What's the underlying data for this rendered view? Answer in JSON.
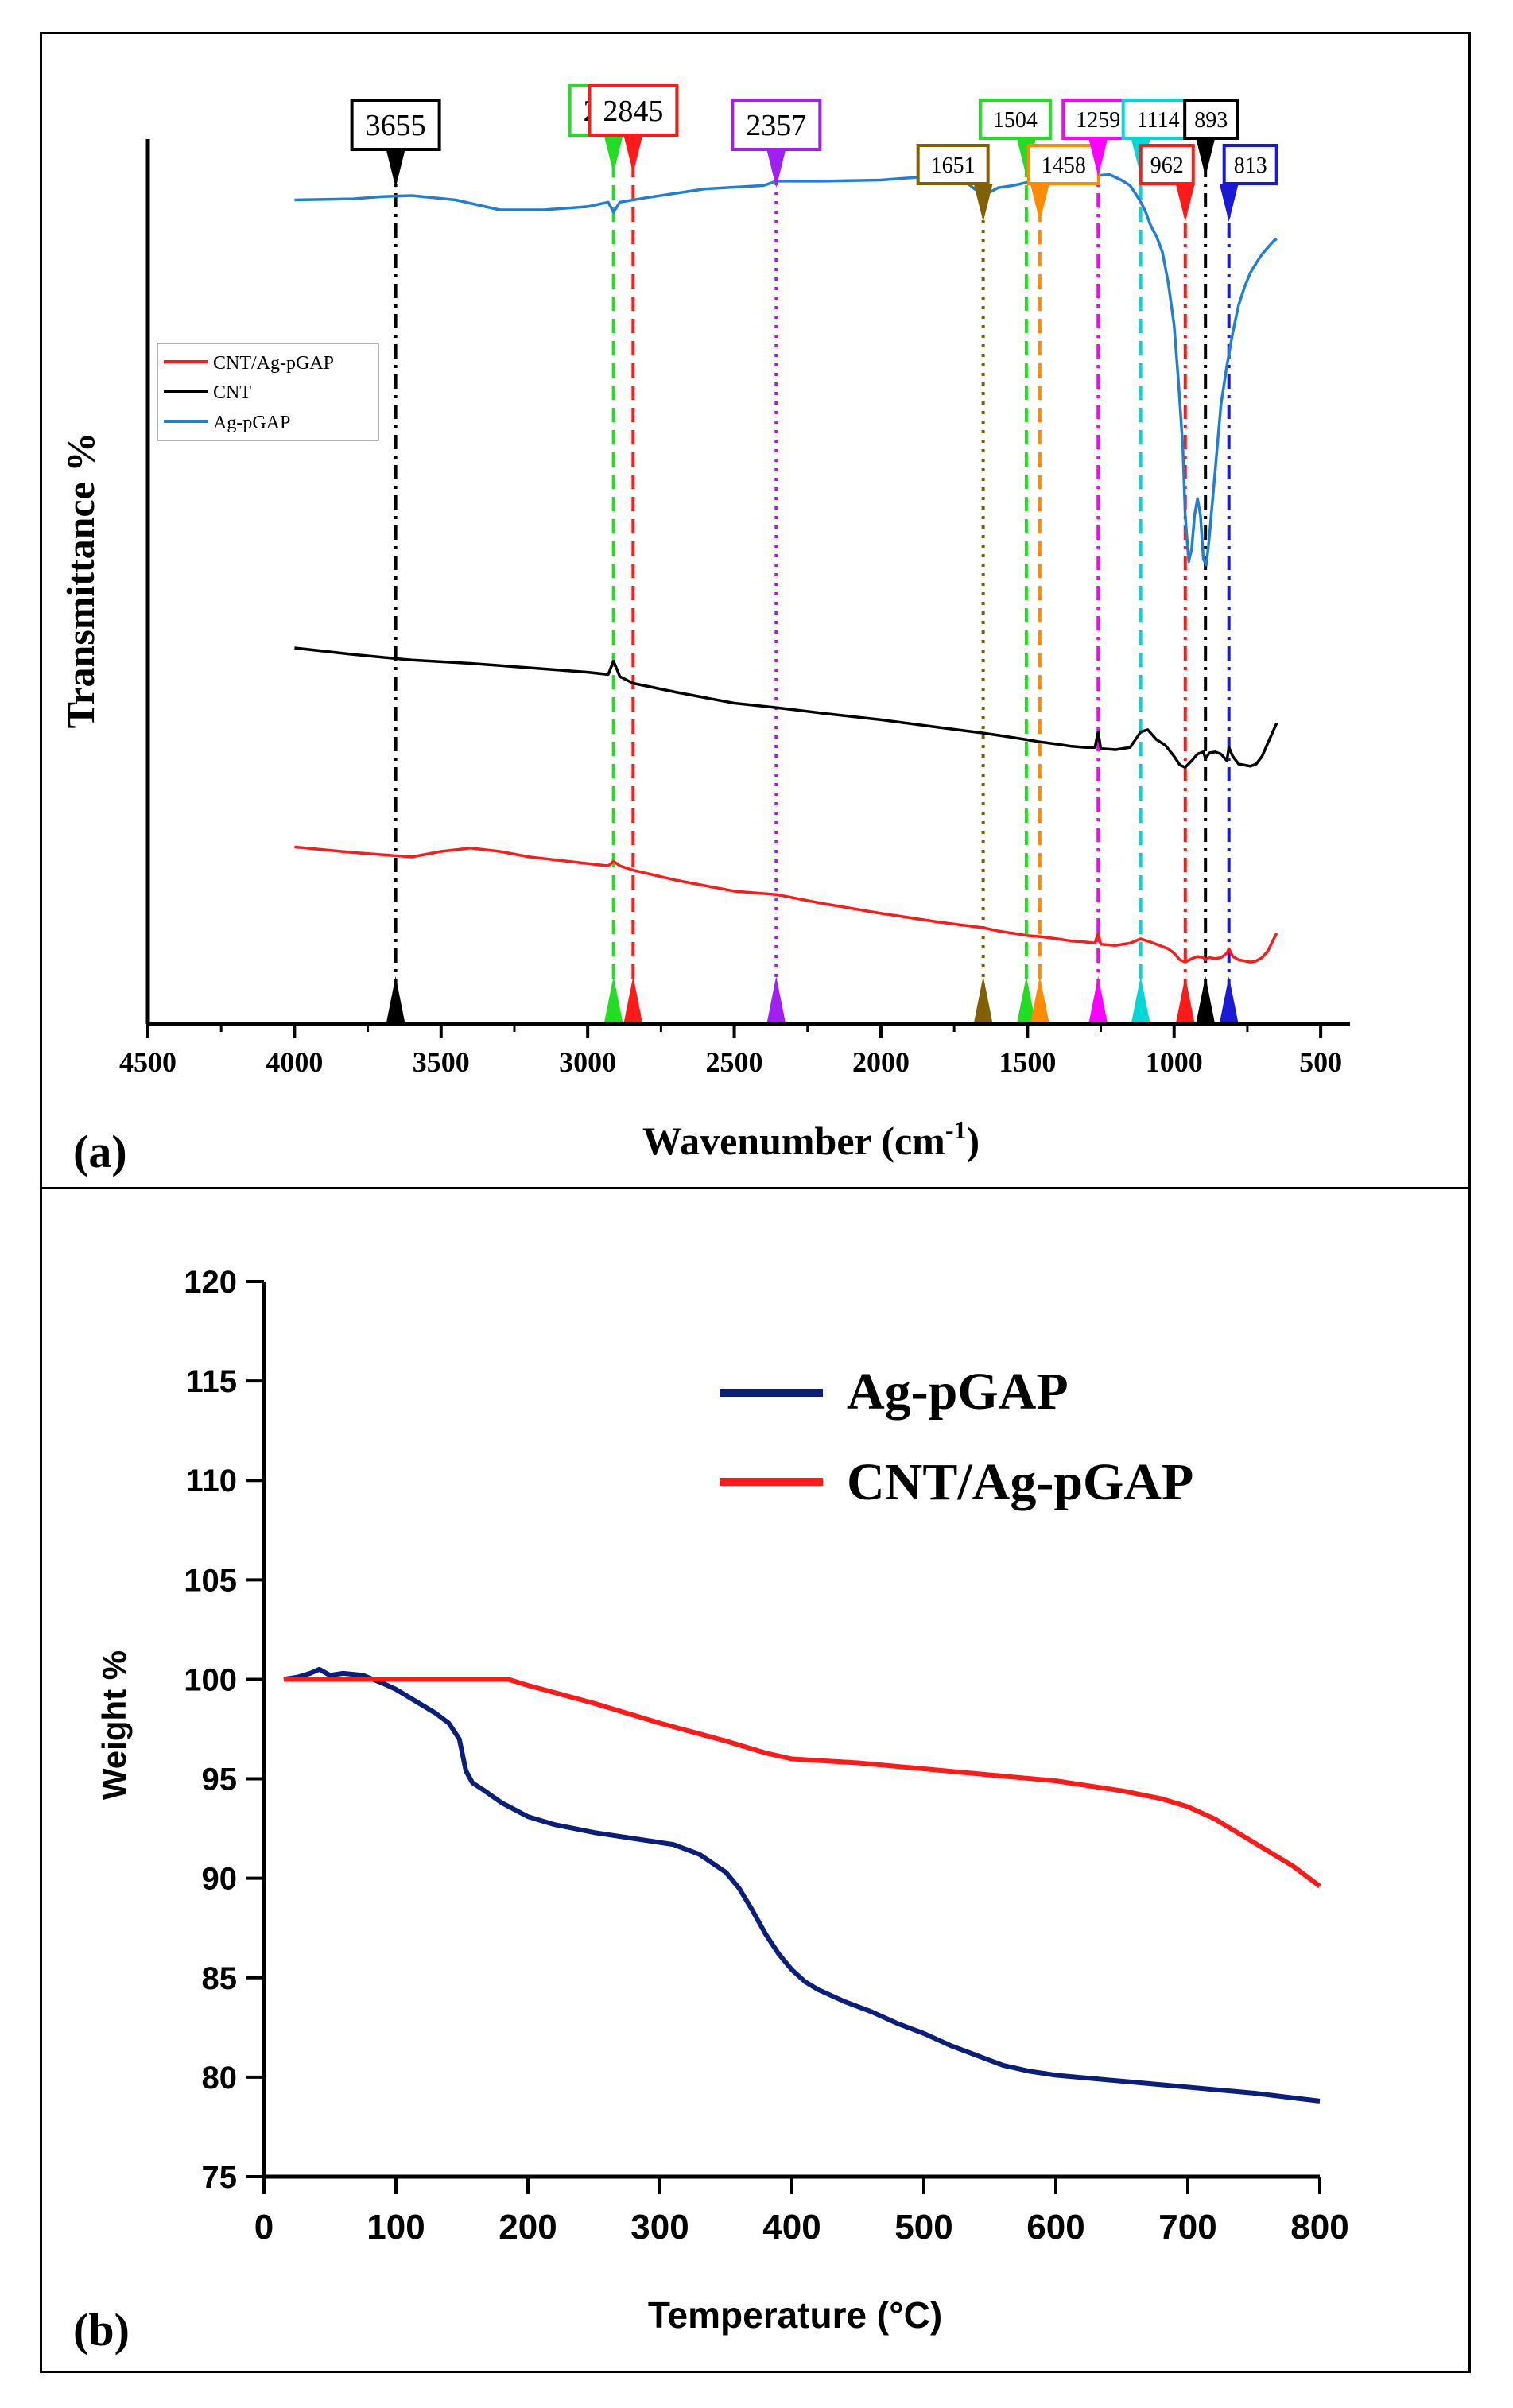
{
  "chart_data": [
    {
      "panel_label": "(a)",
      "type": "line",
      "xlabel": "Wavenumber (cm",
      "xlabel_sup": "-1",
      "xlabel_end": ")",
      "ylabel": "Transmittance %",
      "xlim": [
        4500,
        400
      ],
      "x_reversed": true,
      "xticks": [
        4500,
        4000,
        3500,
        3000,
        2500,
        2000,
        1500,
        1000,
        500
      ],
      "y_ticks_shown": false,
      "legend_position": "left-upper",
      "legend": [
        {
          "name": "CNT/Ag-pGAP",
          "color": "#ff1a1a"
        },
        {
          "name": "CNT",
          "color": "#000000"
        },
        {
          "name": "Ag-pGAP",
          "color": "#1f7fd6"
        }
      ],
      "series": [
        {
          "name": "Ag-pGAP",
          "color": "#1f7fd6",
          "x": [
            4000,
            3800,
            3700,
            3600,
            3450,
            3300,
            3150,
            3000,
            2930,
            2912,
            2890,
            2800,
            2600,
            2400,
            2357,
            2200,
            2000,
            1850,
            1780,
            1700,
            1651,
            1600,
            1550,
            1500,
            1460,
            1420,
            1380,
            1330,
            1300,
            1260,
            1220,
            1180,
            1150,
            1120,
            1100,
            1080,
            1060,
            1040,
            1020,
            1000,
            985,
            970,
            962,
            950,
            940,
            930,
            920,
            910,
            900,
            890,
            880,
            870,
            860,
            850,
            840,
            820,
            800,
            780,
            760,
            740,
            720,
            700,
            680,
            660,
            650
          ],
          "y": [
            8.5,
            8.6,
            8.8,
            8.9,
            8.5,
            7.6,
            7.6,
            7.9,
            8.3,
            7.4,
            8.3,
            8.7,
            9.5,
            9.8,
            10.2,
            10.2,
            10.3,
            10.6,
            10.8,
            9.9,
            8.9,
            9.6,
            9.8,
            10.1,
            10.3,
            10.2,
            10.0,
            10.2,
            10.6,
            10.7,
            10.8,
            10.3,
            9.8,
            8.6,
            7.6,
            6.2,
            5.2,
            3.8,
            1.0,
            -2.8,
            -8.0,
            -14.0,
            -20.0,
            -24.2,
            -23.0,
            -20.0,
            -18.5,
            -20.0,
            -24.0,
            -24.5,
            -22.0,
            -19.0,
            -16.0,
            -13.0,
            -10.0,
            -6.5,
            -3.5,
            -1.0,
            0.6,
            1.9,
            2.8,
            3.6,
            4.2,
            4.8,
            5.0
          ]
        },
        {
          "name": "CNT",
          "color": "#000000",
          "x": [
            4000,
            3800,
            3600,
            3400,
            3200,
            3000,
            2930,
            2912,
            2890,
            2845,
            2700,
            2500,
            2357,
            2200,
            2000,
            1800,
            1651,
            1600,
            1550,
            1504,
            1458,
            1400,
            1350,
            1300,
            1270,
            1259,
            1250,
            1200,
            1150,
            1114,
            1090,
            1060,
            1030,
            1000,
            980,
            962,
            940,
            920,
            900,
            893,
            880,
            860,
            840,
            820,
            813,
            800,
            780,
            760,
            740,
            720,
            700,
            680,
            660,
            650
          ],
          "y": [
            -32.0,
            -32.6,
            -33.1,
            -33.4,
            -33.8,
            -34.2,
            -34.4,
            -33.2,
            -34.6,
            -35.2,
            -36.0,
            -37.0,
            -37.4,
            -37.9,
            -38.5,
            -39.2,
            -39.7,
            -39.9,
            -40.1,
            -40.3,
            -40.5,
            -40.7,
            -40.9,
            -41.0,
            -41.0,
            -39.6,
            -41.1,
            -41.2,
            -41.0,
            -39.6,
            -39.4,
            -40.3,
            -40.8,
            -41.8,
            -42.6,
            -42.8,
            -42.2,
            -41.6,
            -41.4,
            -42.0,
            -41.5,
            -41.4,
            -41.6,
            -42.2,
            -41.0,
            -41.8,
            -42.5,
            -42.6,
            -42.7,
            -42.5,
            -41.8,
            -40.6,
            -39.4,
            -38.8
          ]
        },
        {
          "name": "CNT/Ag-pGAP",
          "color": "#ff1a1a",
          "x": [
            4000,
            3800,
            3600,
            3500,
            3400,
            3300,
            3200,
            3000,
            2930,
            2912,
            2890,
            2845,
            2700,
            2500,
            2357,
            2200,
            2000,
            1800,
            1651,
            1600,
            1550,
            1504,
            1458,
            1400,
            1350,
            1300,
            1270,
            1259,
            1250,
            1200,
            1150,
            1114,
            1080,
            1050,
            1020,
            1000,
            980,
            962,
            940,
            920,
            900,
            893,
            880,
            860,
            840,
            820,
            813,
            800,
            780,
            760,
            740,
            720,
            700,
            680,
            660,
            650
          ],
          "y": [
            -50.0,
            -50.5,
            -50.9,
            -50.4,
            -50.1,
            -50.4,
            -50.9,
            -51.5,
            -51.7,
            -51.3,
            -51.7,
            -52.1,
            -53.0,
            -54.0,
            -54.3,
            -55.1,
            -56.0,
            -56.8,
            -57.3,
            -57.6,
            -57.8,
            -58.0,
            -58.1,
            -58.3,
            -58.5,
            -58.6,
            -58.7,
            -57.8,
            -58.8,
            -58.9,
            -58.7,
            -58.3,
            -58.6,
            -58.9,
            -59.2,
            -59.6,
            -60.2,
            -60.4,
            -60.1,
            -59.9,
            -60.0,
            -60.2,
            -60.0,
            -60.1,
            -60.0,
            -59.6,
            -59.2,
            -59.9,
            -60.2,
            -60.3,
            -60.4,
            -60.3,
            -60.0,
            -59.4,
            -58.3,
            -57.8
          ]
        }
      ],
      "peak_markers": [
        {
          "label": "3655",
          "x": 3655,
          "color": "#000000",
          "line_style": "dashdot"
        },
        {
          "label": "2912",
          "x": 2912,
          "color": "#22dd22",
          "line_style": "dashed"
        },
        {
          "label": "2845",
          "x": 2845,
          "color": "#ff1a1a",
          "line_style": "dashed"
        },
        {
          "label": "2357",
          "x": 2357,
          "color": "#a020f0",
          "line_style": "dotted"
        },
        {
          "label": "1651",
          "x": 1651,
          "color": "#806000",
          "line_style": "dotted"
        },
        {
          "label": "1504",
          "x": 1504,
          "color": "#22dd22",
          "line_style": "dashed"
        },
        {
          "label": "1458",
          "x": 1458,
          "color": "#ff8c00",
          "line_style": "dashed"
        },
        {
          "label": "1259",
          "x": 1259,
          "color": "#ff00ff",
          "line_style": "dashdot"
        },
        {
          "label": "1114",
          "x": 1114,
          "color": "#00d8d8",
          "line_style": "dashed"
        },
        {
          "label": "962",
          "x": 962,
          "color": "#ff1a1a",
          "line_style": "dashdot"
        },
        {
          "label": "893",
          "x": 893,
          "color": "#000000",
          "line_style": "dashdot"
        },
        {
          "label": "813",
          "x": 813,
          "color": "#1a1ad6",
          "line_style": "dashdot"
        }
      ]
    },
    {
      "panel_label": "(b)",
      "type": "line",
      "xlabel": "Temperature (",
      "xlabel_unit": "°C",
      "xlabel_end": ")",
      "ylabel": "Weight %",
      "xlim": [
        0,
        800
      ],
      "ylim": [
        75,
        120
      ],
      "xticks": [
        0,
        100,
        200,
        300,
        400,
        500,
        600,
        700,
        800
      ],
      "yticks": [
        75,
        80,
        85,
        90,
        95,
        100,
        105,
        110,
        115,
        120
      ],
      "legend_position": "top-right",
      "legend": [
        {
          "name": "Ag-pGAP",
          "color": "#0b1f7a"
        },
        {
          "name": "CNT/Ag-pGAP",
          "color": "#ff1a1a"
        }
      ],
      "series": [
        {
          "name": "Ag-pGAP",
          "color": "#0b1f7a",
          "x": [
            15,
            25,
            35,
            42,
            50,
            60,
            75,
            90,
            100,
            110,
            120,
            130,
            140,
            148,
            153,
            158,
            165,
            180,
            200,
            220,
            250,
            280,
            310,
            330,
            350,
            360,
            370,
            380,
            390,
            400,
            410,
            420,
            440,
            460,
            480,
            500,
            520,
            540,
            560,
            580,
            600,
            650,
            700,
            750,
            800
          ],
          "y": [
            100.0,
            100.1,
            100.3,
            100.5,
            100.2,
            100.3,
            100.2,
            99.8,
            99.5,
            99.1,
            98.7,
            98.3,
            97.8,
            97.0,
            95.4,
            94.8,
            94.5,
            93.8,
            93.1,
            92.7,
            92.3,
            92.0,
            91.7,
            91.2,
            90.3,
            89.5,
            88.4,
            87.2,
            86.2,
            85.4,
            84.8,
            84.4,
            83.8,
            83.3,
            82.7,
            82.2,
            81.6,
            81.1,
            80.6,
            80.3,
            80.1,
            79.8,
            79.5,
            79.2,
            78.8
          ]
        },
        {
          "name": "CNT/Ag-pGAP",
          "color": "#ff1a1a",
          "x": [
            15,
            50,
            100,
            150,
            185,
            200,
            250,
            300,
            350,
            380,
            400,
            450,
            500,
            550,
            600,
            650,
            680,
            700,
            720,
            740,
            760,
            780,
            800
          ],
          "y": [
            100.0,
            100.0,
            100.0,
            100.0,
            100.0,
            99.7,
            98.8,
            97.8,
            96.9,
            96.3,
            96.0,
            95.8,
            95.5,
            95.2,
            94.9,
            94.4,
            94.0,
            93.6,
            93.0,
            92.2,
            91.4,
            90.6,
            89.6
          ]
        }
      ]
    }
  ]
}
